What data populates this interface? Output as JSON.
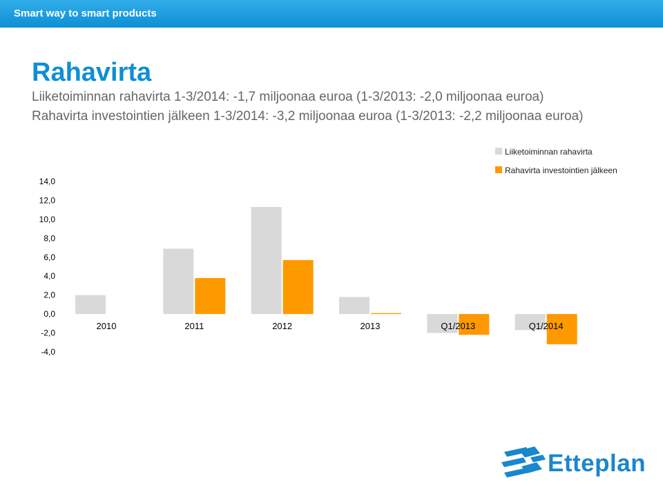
{
  "header": {
    "tagline": "Smart way to smart products"
  },
  "slide": {
    "title": "Rahavirta",
    "line1": "Liiketoiminnan rahavirta 1-3/2014: -1,7 miljoonaa euroa (1-3/2013: -2,0 miljoonaa euroa)",
    "line2": "Rahavirta investointien jälkeen 1-3/2014: -3,2 miljoonaa euroa (1-3/2013: -2,2 miljoonaa euroa)"
  },
  "chart_data": {
    "type": "bar",
    "categories": [
      "2010",
      "2011",
      "2012",
      "2013",
      "Q1/2013",
      "Q1/2014"
    ],
    "series": [
      {
        "name": "Liiketoiminnan rahavirta",
        "color": "#d9d9d9",
        "values": [
          2.0,
          6.9,
          11.3,
          1.8,
          -2.0,
          -1.7
        ]
      },
      {
        "name": "Rahavirta investointien jälkeen",
        "color": "#ff9900",
        "values": [
          0.0,
          3.8,
          5.7,
          0.1,
          -2.2,
          -3.2
        ]
      }
    ],
    "ylim": [
      -4,
      14
    ],
    "yticks": [
      14,
      12,
      10,
      8,
      6,
      4,
      2,
      0,
      -2,
      -4
    ],
    "ytick_labels": [
      "14,0",
      "12,0",
      "10,0",
      "8,0",
      "6,0",
      "4,0",
      "2,0",
      "0,0",
      "-2,0",
      "-4,0"
    ],
    "grid": false,
    "legend": "top-right"
  },
  "brand": {
    "logo_text": "Etteplan",
    "primary_color": "#0d8fd4",
    "logo_color": "#1a86cc"
  }
}
